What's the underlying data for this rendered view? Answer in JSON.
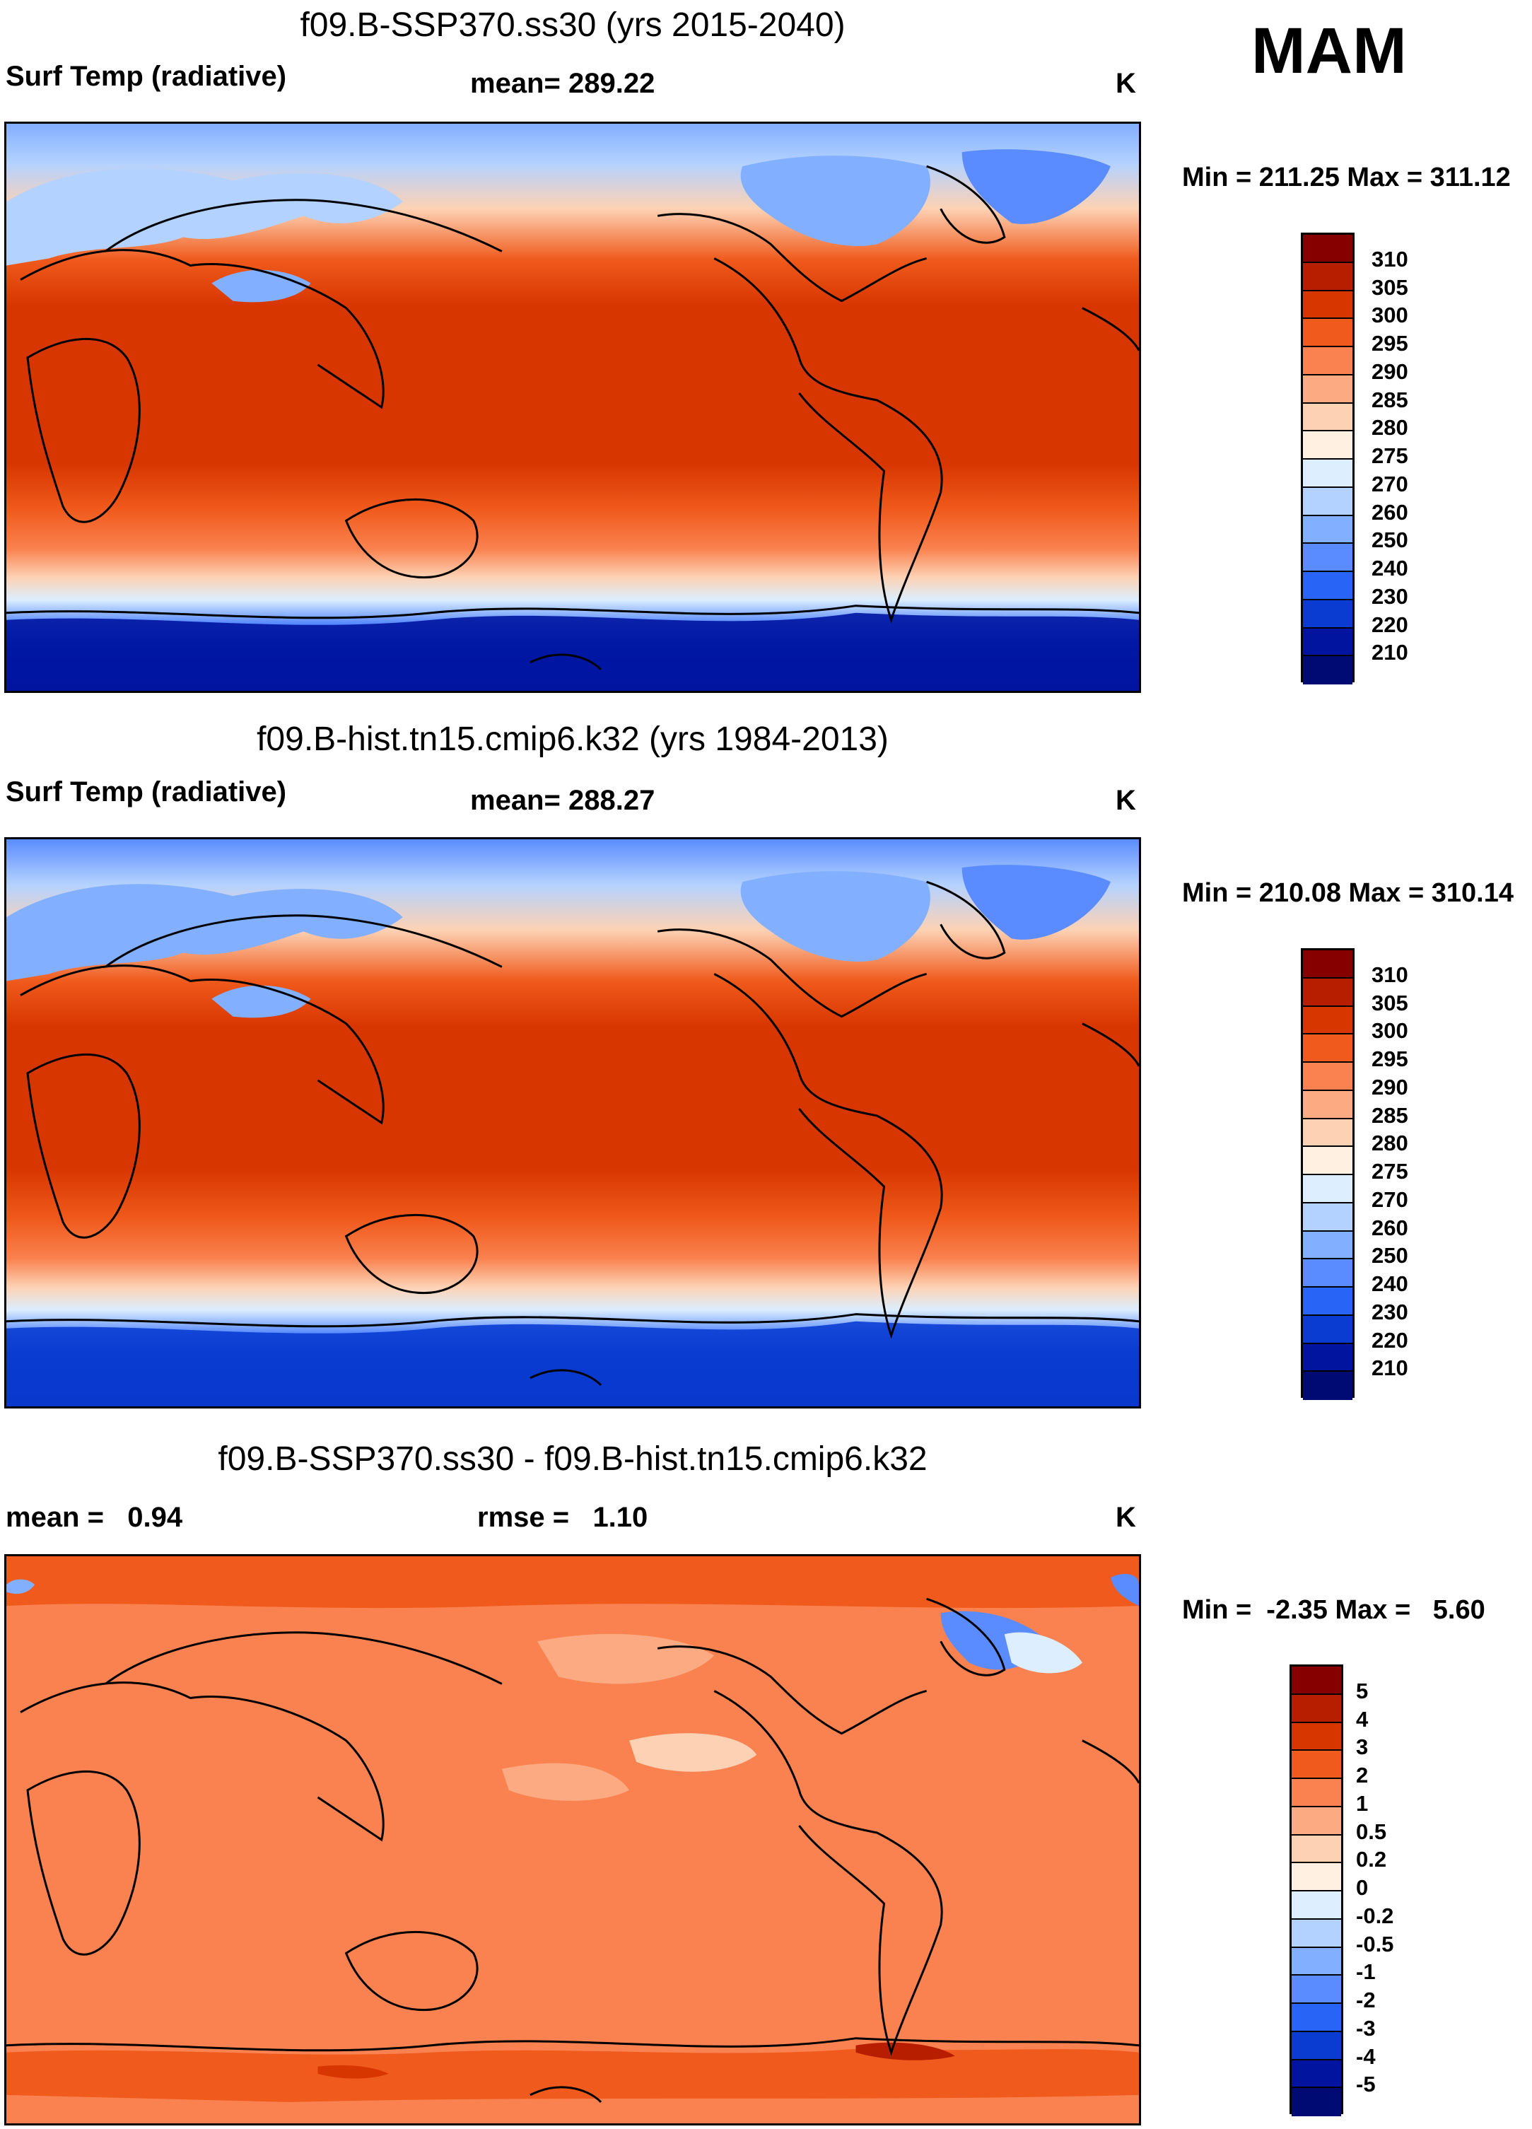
{
  "season": "MAM",
  "panels": [
    {
      "title": "f09.B-SSP370.ss30 (yrs 2015-2040)",
      "left_label": "Surf Temp (radiative)",
      "center_label": "mean= 289.22",
      "units": "K",
      "minmax": "Min = 211.25 Max = 311.12",
      "levels": [
        "310",
        "305",
        "300",
        "295",
        "290",
        "285",
        "280",
        "275",
        "270",
        "260",
        "250",
        "240",
        "230",
        "220",
        "210"
      ],
      "colors": [
        "#870000",
        "#b71e00",
        "#d83600",
        "#f05a1c",
        "#fa8250",
        "#fcaa82",
        "#fdd2b4",
        "#fff0e1",
        "#dceeff",
        "#b4d2ff",
        "#82afff",
        "#5a8cff",
        "#2864f5",
        "#0a3cd2",
        "#0014a0",
        "#000a73"
      ]
    },
    {
      "title": "f09.B-hist.tn15.cmip6.k32 (yrs 1984-2013)",
      "left_label": "Surf Temp (radiative)",
      "center_label": "mean= 288.27",
      "units": "K",
      "minmax": "Min = 210.08 Max = 310.14",
      "levels": [
        "310",
        "305",
        "300",
        "295",
        "290",
        "285",
        "280",
        "275",
        "270",
        "260",
        "250",
        "240",
        "230",
        "220",
        "210"
      ],
      "colors": [
        "#870000",
        "#b71e00",
        "#d83600",
        "#f05a1c",
        "#fa8250",
        "#fcaa82",
        "#fdd2b4",
        "#fff0e1",
        "#dceeff",
        "#b4d2ff",
        "#82afff",
        "#5a8cff",
        "#2864f5",
        "#0a3cd2",
        "#0014a0",
        "#000a73"
      ]
    },
    {
      "title": "f09.B-SSP370.ss30 - f09.B-hist.tn15.cmip6.k32",
      "left_label": "mean =   0.94",
      "center_label": "rmse =   1.10",
      "units": "K",
      "minmax": "Min =  -2.35 Max =   5.60",
      "levels": [
        "5",
        "4",
        "3",
        "2",
        "1",
        "0.5",
        "0.2",
        "0",
        "-0.2",
        "-0.5",
        "-1",
        "-2",
        "-3",
        "-4",
        "-5"
      ],
      "colors": [
        "#870000",
        "#b71e00",
        "#d83600",
        "#f05a1c",
        "#fa8250",
        "#fcaa82",
        "#fdd2b4",
        "#fff0e1",
        "#dceeff",
        "#b4d2ff",
        "#82afff",
        "#5a8cff",
        "#2864f5",
        "#0a3cd2",
        "#0014a0",
        "#000a73"
      ]
    }
  ]
}
